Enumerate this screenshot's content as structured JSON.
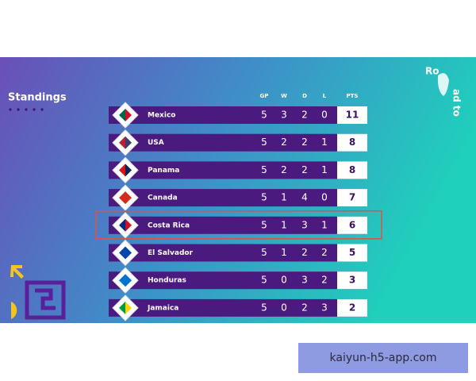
{
  "title": "Standings",
  "logo": {
    "line1": "Ro",
    "line2": "ad to"
  },
  "table": {
    "headers": [
      "GP",
      "W",
      "D",
      "L",
      "PTS"
    ],
    "highlight_row": 4,
    "rows": [
      {
        "team": "Mexico",
        "gp": 5,
        "w": 3,
        "d": 2,
        "l": 0,
        "pts": 11
      },
      {
        "team": "USA",
        "gp": 5,
        "w": 2,
        "d": 2,
        "l": 1,
        "pts": 8
      },
      {
        "team": "Panama",
        "gp": 5,
        "w": 2,
        "d": 2,
        "l": 1,
        "pts": 8
      },
      {
        "team": "Canada",
        "gp": 5,
        "w": 1,
        "d": 4,
        "l": 0,
        "pts": 7
      },
      {
        "team": "Costa Rica",
        "gp": 5,
        "w": 1,
        "d": 3,
        "l": 1,
        "pts": 6
      },
      {
        "team": "El Salvador",
        "gp": 5,
        "w": 1,
        "d": 2,
        "l": 2,
        "pts": 5
      },
      {
        "team": "Honduras",
        "gp": 5,
        "w": 0,
        "d": 3,
        "l": 2,
        "pts": 3
      },
      {
        "team": "Jamaica",
        "gp": 5,
        "w": 0,
        "d": 2,
        "l": 3,
        "pts": 2
      }
    ]
  },
  "watermark": "kaiyun-h5-app.com"
}
